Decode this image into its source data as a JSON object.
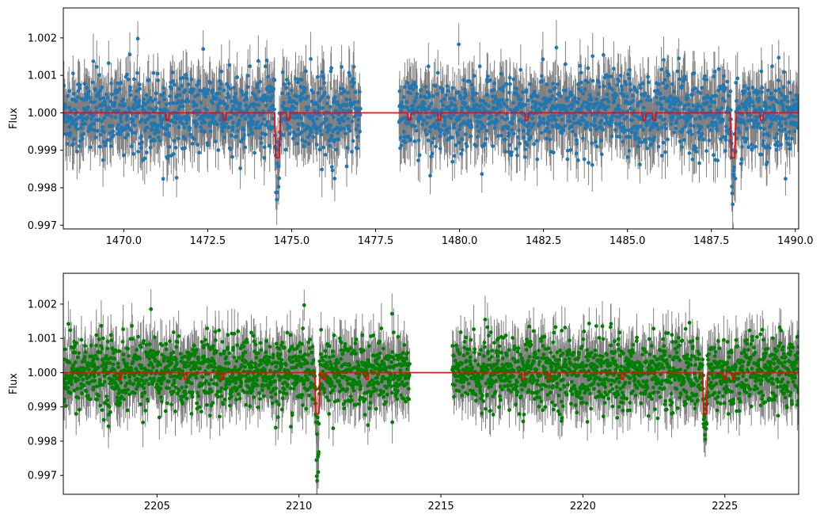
{
  "chart_data": [
    {
      "type": "scatter",
      "title": "",
      "xlabel": "",
      "ylabel": "Flux",
      "xlim": [
        1468.2,
        1490.1
      ],
      "ylim": [
        0.9969,
        1.0028
      ],
      "x_ticks": [
        1470.0,
        1472.5,
        1475.0,
        1477.5,
        1480.0,
        1482.5,
        1485.0,
        1487.5,
        1490.0
      ],
      "x_tick_labels": [
        "1470.0",
        "1472.5",
        "1475.0",
        "1477.5",
        "1480.0",
        "1482.5",
        "1485.0",
        "1487.5",
        "1490.0"
      ],
      "y_ticks": [
        0.997,
        0.998,
        0.999,
        1.0,
        1.001,
        1.002
      ],
      "y_tick_labels": [
        "0.997",
        "0.998",
        "0.999",
        "1.000",
        "1.001",
        "1.002"
      ],
      "grid": false,
      "observation_windows": [
        [
          1468.2,
          1477.05
        ],
        [
          1478.2,
          1490.1
        ]
      ],
      "series": [
        {
          "kind": "points_with_errorbars",
          "marker_color": "#1f77b4",
          "errorbar_color": "#808080",
          "baseline": 1.0,
          "typical_scatter_range": [
            0.9985,
            1.0015
          ],
          "typical_error_half_width": 0.0006,
          "deep_dips": [
            {
              "center": 1474.58,
              "min_flux": 0.9976
            },
            {
              "center": 1488.15,
              "min_flux": 0.9973
            }
          ]
        },
        {
          "kind": "model_line",
          "color": "#ff0000",
          "baseline": 1.0,
          "transits": [
            {
              "center": 1471.3,
              "depth": 0.0002
            },
            {
              "center": 1473.0,
              "depth": 0.0002
            },
            {
              "center": 1474.58,
              "depth": 0.0012
            },
            {
              "center": 1474.9,
              "depth": 0.0002
            },
            {
              "center": 1478.5,
              "depth": 0.0002
            },
            {
              "center": 1479.4,
              "depth": 0.0002
            },
            {
              "center": 1482.0,
              "depth": 0.0002
            },
            {
              "center": 1485.5,
              "depth": 0.0002
            },
            {
              "center": 1485.8,
              "depth": 0.0002
            },
            {
              "center": 1488.15,
              "depth": 0.0012
            },
            {
              "center": 1489.0,
              "depth": 0.0002
            }
          ]
        }
      ]
    },
    {
      "type": "scatter",
      "title": "",
      "xlabel": "",
      "ylabel": "Flux",
      "xlim": [
        2201.7,
        2227.6
      ],
      "ylim": [
        0.99645,
        1.0029
      ],
      "x_ticks": [
        2205,
        2210,
        2215,
        2220,
        2225
      ],
      "x_tick_labels": [
        "2205",
        "2210",
        "2215",
        "2220",
        "2225"
      ],
      "y_ticks": [
        0.997,
        0.998,
        0.999,
        1.0,
        1.001,
        1.002
      ],
      "y_tick_labels": [
        "0.997",
        "0.998",
        "0.999",
        "1.000",
        "1.001",
        "1.002"
      ],
      "grid": false,
      "observation_windows": [
        [
          2201.7,
          2213.9
        ],
        [
          2215.4,
          2227.6
        ]
      ],
      "series": [
        {
          "kind": "points_with_errorbars",
          "marker_color": "#008000",
          "errorbar_color": "#808080",
          "baseline": 1.0,
          "typical_scatter_range": [
            0.9985,
            1.0015
          ],
          "typical_error_half_width": 0.0006,
          "deep_dips": [
            {
              "center": 2210.65,
              "min_flux": 0.9969
            },
            {
              "center": 2224.3,
              "min_flux": 0.9979
            }
          ]
        },
        {
          "kind": "model_line",
          "color": "#ff0000",
          "baseline": 1.0,
          "transits": [
            {
              "center": 2203.7,
              "depth": 0.0002
            },
            {
              "center": 2206.0,
              "depth": 0.0002
            },
            {
              "center": 2207.3,
              "depth": 0.0002
            },
            {
              "center": 2210.65,
              "depth": 0.0012
            },
            {
              "center": 2210.9,
              "depth": 0.0002
            },
            {
              "center": 2212.4,
              "depth": 0.0002
            },
            {
              "center": 2217.9,
              "depth": 0.0002
            },
            {
              "center": 2218.8,
              "depth": 0.0002
            },
            {
              "center": 2221.4,
              "depth": 0.0002
            },
            {
              "center": 2224.3,
              "depth": 0.0012
            },
            {
              "center": 2225.0,
              "depth": 0.0002
            },
            {
              "center": 2225.3,
              "depth": 0.0002
            }
          ]
        }
      ]
    }
  ]
}
